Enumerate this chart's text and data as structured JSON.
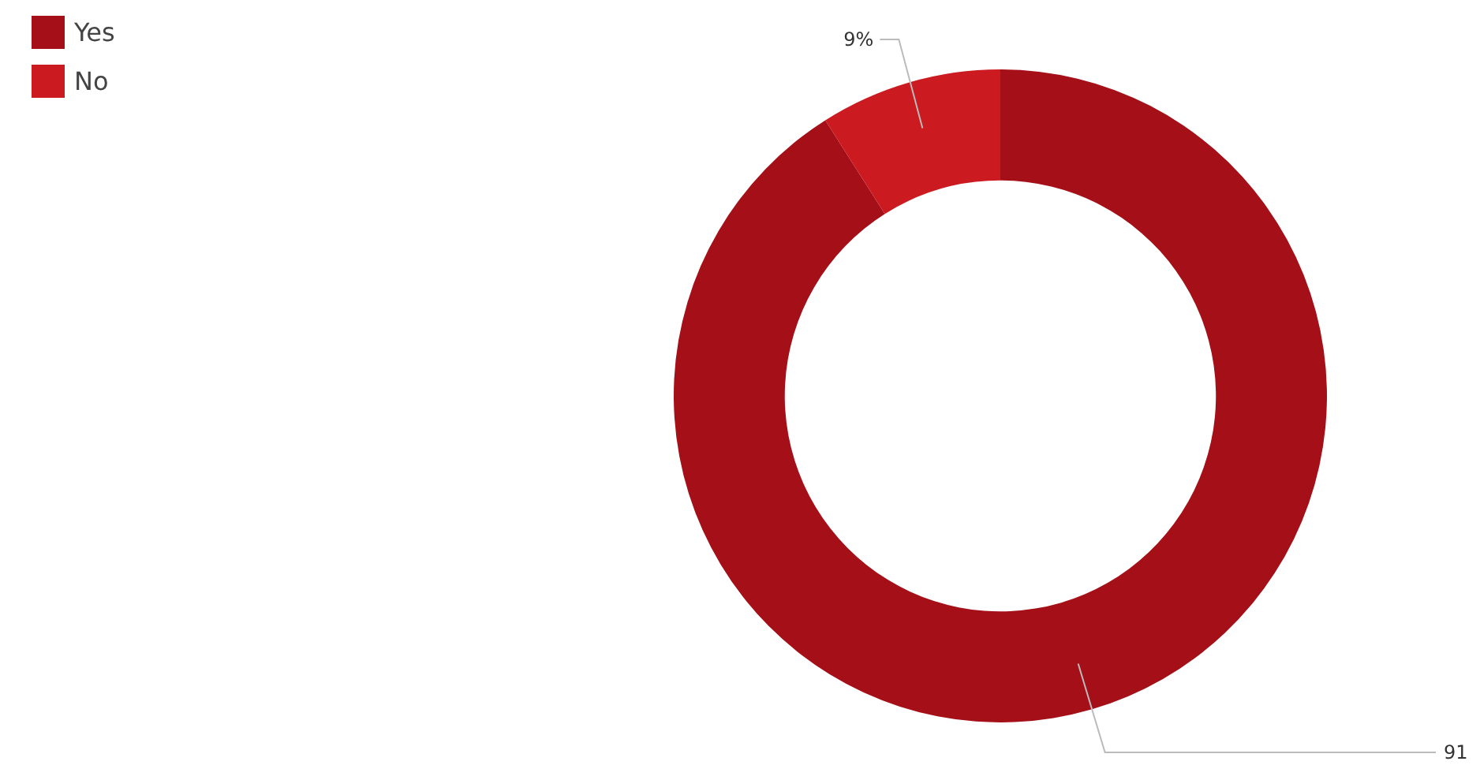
{
  "chart_data": {
    "type": "donut",
    "categories": [
      "Yes",
      "No"
    ],
    "values": [
      91,
      9
    ],
    "colors": [
      "#a51018",
      "#cb1a20"
    ],
    "value_labels": [
      "91",
      "9%"
    ],
    "legend": "top left"
  }
}
